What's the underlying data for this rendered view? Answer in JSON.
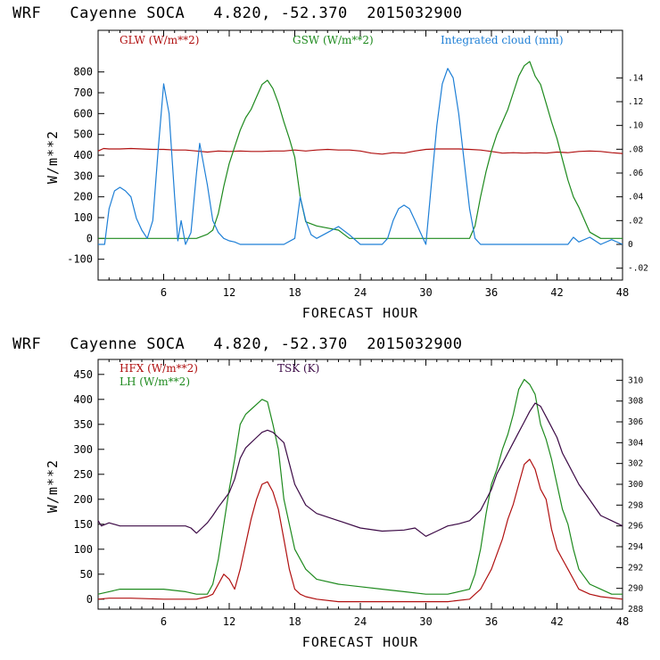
{
  "colors": {
    "red": "#b01010",
    "green": "#1e8a1e",
    "blue": "#1e7fd6",
    "purple": "#3c0a46",
    "axis": "#000000"
  },
  "chart_data": [
    {
      "type": "line",
      "title": "WRF   Cayenne SOCA   4.820, -52.370  2015032900",
      "xlabel": "FORECAST HOUR",
      "ylabel": "W/m**2",
      "xlim": [
        0,
        48
      ],
      "ylim": [
        -200,
        1000
      ],
      "y2lim": [
        -0.03,
        0.18
      ],
      "x_ticks": [
        "6",
        "12",
        "18",
        "24",
        "30",
        "36",
        "42",
        "48"
      ],
      "y_ticks": [
        "-100",
        "0",
        "100",
        "200",
        "300",
        "400",
        "500",
        "600",
        "700",
        "800"
      ],
      "y2_ticks": [
        "-.02",
        "0",
        ".02",
        ".04",
        ".06",
        ".08",
        ".10",
        ".12",
        ".14"
      ],
      "legend_position": "top",
      "series": [
        {
          "name": "GLW (W/m**2)",
          "color_key": "red",
          "axis": "left",
          "x": [
            0,
            0.5,
            1,
            2,
            3,
            4,
            5,
            6,
            7,
            8,
            9,
            10,
            11,
            12,
            13,
            14,
            15,
            16,
            17,
            18,
            19,
            20,
            21,
            22,
            23,
            24,
            25,
            26,
            27,
            28,
            29,
            30,
            31,
            32,
            33,
            34,
            35,
            36,
            37,
            38,
            39,
            40,
            41,
            42,
            43,
            44,
            45,
            46,
            47,
            48
          ],
          "values": [
            420,
            432,
            430,
            430,
            432,
            430,
            428,
            428,
            425,
            425,
            420,
            415,
            420,
            418,
            420,
            418,
            418,
            420,
            420,
            425,
            420,
            425,
            428,
            425,
            425,
            420,
            410,
            405,
            412,
            410,
            420,
            428,
            430,
            430,
            430,
            428,
            425,
            418,
            410,
            412,
            410,
            412,
            410,
            415,
            412,
            418,
            420,
            418,
            412,
            408
          ]
        },
        {
          "name": "GSW (W/m**2)",
          "color_key": "green",
          "axis": "left",
          "x": [
            0,
            9,
            10,
            10.5,
            11,
            11.5,
            12,
            12.5,
            13,
            13.5,
            14,
            14.5,
            15,
            15.5,
            16,
            16.5,
            17,
            17.5,
            18,
            18.5,
            19,
            20,
            21,
            22,
            22.5,
            23,
            34,
            34.5,
            35,
            35.5,
            36,
            36.5,
            37,
            37.5,
            38,
            38.5,
            39,
            39.5,
            40,
            40.5,
            41,
            41.5,
            42,
            42.5,
            43,
            43.5,
            44,
            44.5,
            45,
            46,
            48
          ],
          "values": [
            0,
            0,
            20,
            40,
            120,
            250,
            360,
            440,
            520,
            580,
            620,
            680,
            740,
            760,
            720,
            650,
            560,
            480,
            390,
            200,
            80,
            60,
            50,
            40,
            20,
            0,
            0,
            60,
            200,
            320,
            420,
            500,
            560,
            620,
            700,
            780,
            830,
            850,
            780,
            740,
            650,
            560,
            480,
            380,
            280,
            200,
            150,
            90,
            30,
            0,
            0
          ]
        },
        {
          "name": "Integrated cloud (mm)",
          "color_key": "blue",
          "axis": "right",
          "x": [
            0,
            0.6,
            1,
            1.5,
            2,
            2.5,
            3,
            3.5,
            4,
            4.5,
            5,
            5.5,
            6,
            6.5,
            7,
            7.3,
            7.6,
            8,
            8.5,
            9,
            9.3,
            9.6,
            10,
            10.5,
            11,
            11.5,
            12,
            12.5,
            13,
            14,
            17,
            18,
            18.5,
            19,
            19.5,
            20,
            21,
            22,
            23,
            24,
            26,
            26.5,
            27,
            27.5,
            28,
            28.5,
            29,
            29.5,
            30,
            30.5,
            31,
            31.5,
            32,
            32.5,
            33,
            33.5,
            34,
            34.5,
            35,
            35.5,
            36,
            42,
            43,
            43.5,
            44,
            45,
            46,
            47,
            48
          ],
          "values": [
            0,
            0,
            0.03,
            0.045,
            0.048,
            0.045,
            0.04,
            0.022,
            0.012,
            0.005,
            0.02,
            0.08,
            0.135,
            0.11,
            0.04,
            0.003,
            0.02,
            0.0,
            0.01,
            0.06,
            0.085,
            0.07,
            0.05,
            0.02,
            0.01,
            0.005,
            0.003,
            0.002,
            0.0,
            0,
            0,
            0.005,
            0.04,
            0.02,
            0.008,
            0.005,
            0.01,
            0.015,
            0.008,
            0,
            0,
            0.005,
            0.02,
            0.03,
            0.033,
            0.03,
            0.02,
            0.01,
            0,
            0.05,
            0.1,
            0.135,
            0.148,
            0.14,
            0.11,
            0.07,
            0.03,
            0.005,
            0,
            0,
            0,
            0,
            0,
            0.006,
            0.002,
            0.006,
            0,
            0.004,
            0
          ]
        }
      ]
    },
    {
      "type": "line",
      "title": "WRF   Cayenne SOCA   4.820, -52.370  2015032900",
      "xlabel": "FORECAST HOUR",
      "ylabel": "W/m**2",
      "xlim": [
        0,
        48
      ],
      "ylim": [
        -20,
        480
      ],
      "y2lim": [
        288,
        312
      ],
      "x_ticks": [
        "6",
        "12",
        "18",
        "24",
        "30",
        "36",
        "42",
        "48"
      ],
      "y_ticks": [
        "0",
        "50",
        "100",
        "150",
        "200",
        "250",
        "300",
        "350",
        "400",
        "450"
      ],
      "y2_ticks": [
        "288",
        "290",
        "292",
        "294",
        "296",
        "298",
        "300",
        "302",
        "304",
        "306",
        "308",
        "310"
      ],
      "legend_position": "top-left",
      "series": [
        {
          "name": "HFX (W/m**2)",
          "color_key": "red",
          "axis": "left",
          "x": [
            0,
            1,
            3,
            6,
            9,
            10,
            10.5,
            11,
            11.5,
            12,
            12.5,
            13,
            13.5,
            14,
            14.5,
            15,
            15.5,
            16,
            16.5,
            17,
            17.5,
            18,
            18.5,
            19,
            20,
            22,
            24,
            26,
            28,
            30,
            32,
            34,
            35,
            35.5,
            36,
            36.5,
            37,
            37.5,
            38,
            38.5,
            39,
            39.5,
            40,
            40.5,
            41,
            41.5,
            42,
            42.5,
            43,
            43.5,
            44,
            45,
            46,
            48
          ],
          "values": [
            0,
            2,
            2,
            0,
            0,
            5,
            10,
            30,
            50,
            40,
            20,
            60,
            110,
            160,
            200,
            230,
            235,
            215,
            180,
            120,
            60,
            20,
            10,
            5,
            0,
            -5,
            -5,
            -5,
            -5,
            -5,
            -5,
            0,
            20,
            40,
            60,
            90,
            120,
            160,
            190,
            230,
            270,
            280,
            260,
            220,
            200,
            140,
            100,
            80,
            60,
            40,
            20,
            10,
            5,
            0
          ]
        },
        {
          "name": "LH (W/m**2)",
          "color_key": "green",
          "axis": "left",
          "x": [
            0,
            1,
            2,
            4,
            6,
            8,
            9,
            10,
            10.5,
            11,
            11.5,
            12,
            12.5,
            13,
            13.5,
            14,
            14.5,
            15,
            15.5,
            16,
            16.5,
            17,
            17.5,
            18,
            19,
            20,
            22,
            24,
            26,
            28,
            30,
            32,
            34,
            34.5,
            35,
            35.5,
            36,
            36.5,
            37,
            37.5,
            38,
            38.5,
            39,
            39.5,
            40,
            40.5,
            41,
            41.5,
            42,
            42.5,
            43,
            43.5,
            44,
            45,
            46,
            47,
            48
          ],
          "values": [
            10,
            15,
            20,
            20,
            20,
            15,
            10,
            10,
            30,
            80,
            150,
            220,
            280,
            350,
            370,
            380,
            390,
            400,
            395,
            350,
            300,
            200,
            150,
            100,
            60,
            40,
            30,
            25,
            20,
            15,
            10,
            10,
            20,
            50,
            100,
            170,
            230,
            260,
            300,
            330,
            370,
            420,
            440,
            430,
            410,
            350,
            320,
            280,
            230,
            180,
            150,
            100,
            60,
            30,
            20,
            10,
            10
          ]
        },
        {
          "name": "TSK (K)",
          "color_key": "purple",
          "axis": "right",
          "x": [
            0,
            0.3,
            1,
            2,
            4,
            6,
            8,
            8.5,
            9,
            9.5,
            10,
            10.5,
            11,
            11.5,
            12,
            12.5,
            13,
            13.5,
            14,
            14.5,
            15,
            15.5,
            16,
            16.5,
            17,
            17.5,
            18,
            19,
            20,
            22,
            24,
            26,
            28,
            29,
            30,
            31,
            32,
            33,
            34,
            35,
            35.5,
            36,
            36.5,
            37,
            37.5,
            38,
            38.5,
            39,
            39.5,
            40,
            40.5,
            41,
            41.5,
            42,
            42.5,
            43,
            44,
            45,
            46,
            47,
            48
          ],
          "values": [
            296.5,
            296.0,
            296.3,
            296.0,
            296.0,
            296.0,
            296.0,
            295.8,
            295.3,
            295.8,
            296.3,
            297.0,
            297.8,
            298.5,
            299.2,
            300.5,
            302.5,
            303.5,
            304.0,
            304.5,
            305.0,
            305.2,
            305.0,
            304.5,
            304.0,
            302.0,
            300.0,
            298.0,
            297.2,
            296.5,
            295.8,
            295.5,
            295.6,
            295.8,
            295.0,
            295.5,
            296.0,
            296.2,
            296.5,
            297.5,
            298.5,
            299.5,
            301.0,
            302.0,
            303.0,
            304.0,
            305.0,
            306.0,
            307.0,
            307.8,
            307.5,
            306.5,
            305.5,
            304.5,
            303.0,
            302.0,
            300.0,
            298.5,
            297.0,
            296.5,
            296.0
          ]
        }
      ]
    }
  ]
}
